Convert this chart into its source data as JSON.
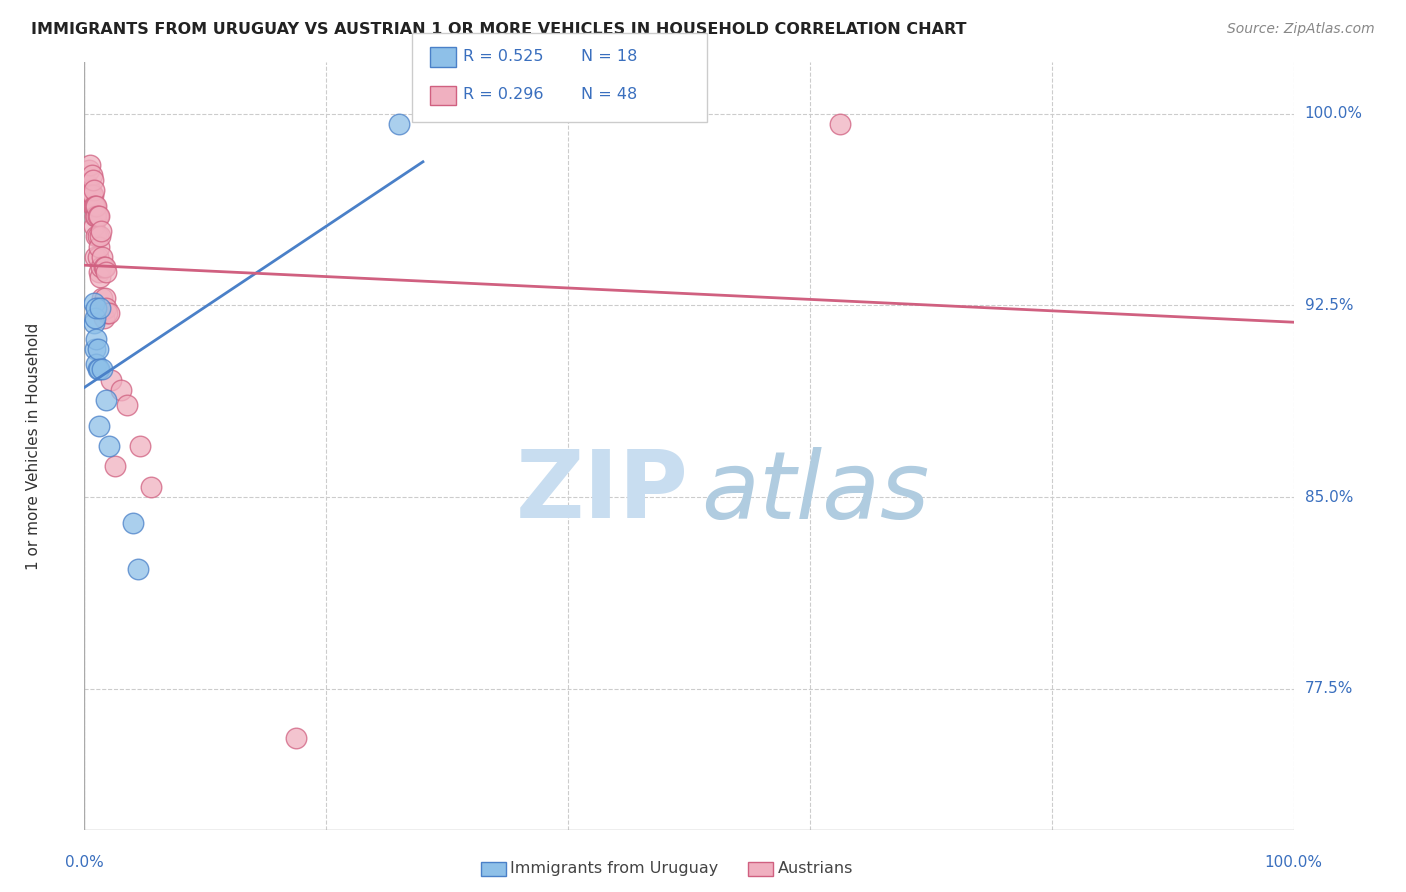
{
  "title": "IMMIGRANTS FROM URUGUAY VS AUSTRIAN 1 OR MORE VEHICLES IN HOUSEHOLD CORRELATION CHART",
  "source": "Source: ZipAtlas.com",
  "ylabel": "1 or more Vehicles in Household",
  "xlim": [
    0.0,
    1.0
  ],
  "ylim": [
    0.72,
    1.02
  ],
  "yticks": [
    0.775,
    0.85,
    0.925,
    1.0
  ],
  "ytick_labels": [
    "77.5%",
    "85.0%",
    "92.5%",
    "100.0%"
  ],
  "xtick_labels_left": "0.0%",
  "xtick_labels_right": "100.0%",
  "legend_r_blue": "R = 0.525",
  "legend_n_blue": "N = 18",
  "legend_r_pink": "R = 0.296",
  "legend_n_pink": "N = 48",
  "series_blue_label": "Immigrants from Uruguay",
  "series_pink_label": "Austrians",
  "blue_scatter_color": "#8ec0e8",
  "blue_edge_color": "#4a80c8",
  "pink_scatter_color": "#f0b0c0",
  "pink_edge_color": "#d06080",
  "blue_line_color": "#4a80c8",
  "pink_line_color": "#d06080",
  "grid_color": "#cccccc",
  "blue_x": [
    0.008,
    0.008,
    0.009,
    0.009,
    0.01,
    0.01,
    0.01,
    0.011,
    0.011,
    0.012,
    0.012,
    0.013,
    0.015,
    0.018,
    0.02,
    0.04,
    0.044,
    0.26
  ],
  "blue_y": [
    0.918,
    0.926,
    0.908,
    0.92,
    0.902,
    0.912,
    0.924,
    0.9,
    0.908,
    0.878,
    0.9,
    0.924,
    0.9,
    0.888,
    0.87,
    0.84,
    0.822,
    0.996
  ],
  "pink_x": [
    0.003,
    0.004,
    0.004,
    0.005,
    0.005,
    0.005,
    0.006,
    0.006,
    0.007,
    0.007,
    0.007,
    0.008,
    0.008,
    0.008,
    0.009,
    0.009,
    0.009,
    0.01,
    0.01,
    0.01,
    0.011,
    0.011,
    0.011,
    0.012,
    0.012,
    0.012,
    0.013,
    0.013,
    0.014,
    0.014,
    0.015,
    0.015,
    0.016,
    0.016,
    0.017,
    0.017,
    0.018,
    0.018,
    0.019,
    0.02,
    0.022,
    0.025,
    0.03,
    0.035,
    0.046,
    0.055,
    0.175,
    0.625
  ],
  "pink_y": [
    0.972,
    0.968,
    0.978,
    0.97,
    0.98,
    0.968,
    0.976,
    0.968,
    0.964,
    0.968,
    0.974,
    0.964,
    0.97,
    0.956,
    0.96,
    0.944,
    0.964,
    0.952,
    0.96,
    0.964,
    0.944,
    0.952,
    0.96,
    0.938,
    0.948,
    0.96,
    0.936,
    0.952,
    0.94,
    0.954,
    0.928,
    0.944,
    0.92,
    0.94,
    0.928,
    0.94,
    0.924,
    0.938,
    0.922,
    0.922,
    0.896,
    0.862,
    0.892,
    0.886,
    0.87,
    0.854,
    0.756,
    0.996
  ],
  "blue_line_x_start": 0.0,
  "blue_line_x_end": 0.28,
  "pink_line_x_start": 0.0,
  "pink_line_x_end": 1.0
}
